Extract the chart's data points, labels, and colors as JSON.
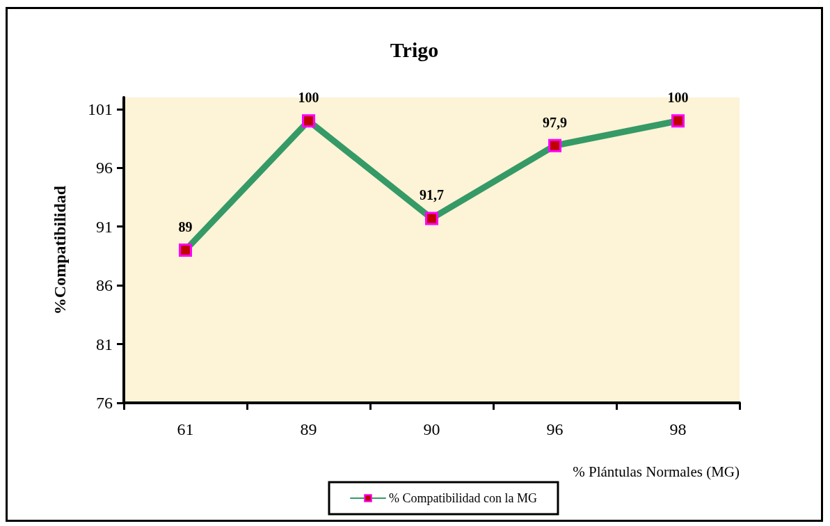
{
  "chart_data": {
    "type": "line",
    "title": "Trigo",
    "xlabel": "% Plántulas Normales (MG)",
    "ylabel": "%Compatibilidad",
    "categories": [
      "61",
      "89",
      "90",
      "96",
      "98"
    ],
    "series": [
      {
        "name": "% Compatibilidad con la MG",
        "color": "#359a66",
        "values": [
          89,
          100,
          91.7,
          97.9,
          100
        ],
        "value_labels": [
          "89",
          "100",
          "91,7",
          "97,9",
          "100"
        ]
      }
    ],
    "ylim": [
      76,
      102
    ],
    "yticks": [
      76,
      81,
      86,
      91,
      96,
      101
    ],
    "grid": false,
    "legend": "bottom",
    "marker": "square",
    "line_style": "solid"
  }
}
